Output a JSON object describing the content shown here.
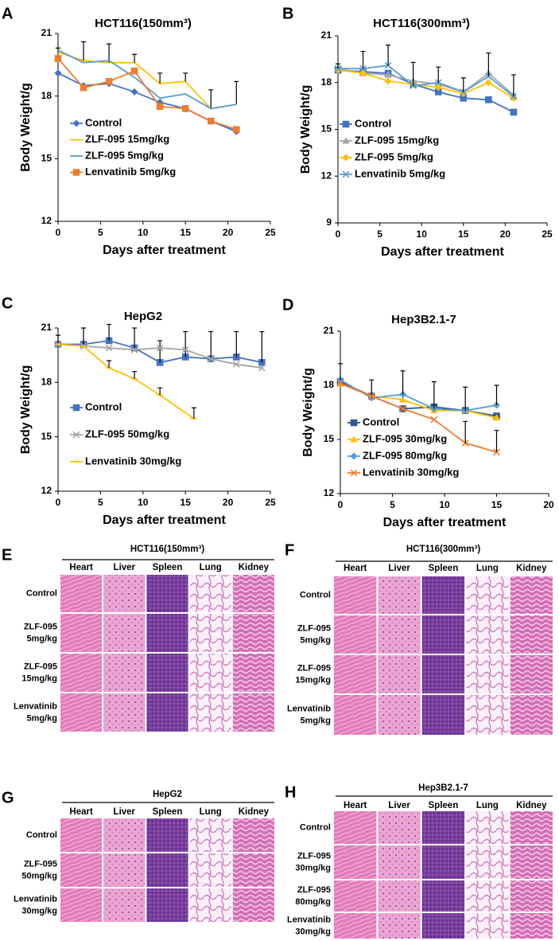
{
  "chart_data": [
    {
      "panel": "A",
      "type": "line",
      "title": "HCT116(150mm³)",
      "x_label": "Days after treatment",
      "y_label": "Body Weight/g",
      "x": [
        0,
        3,
        6,
        9,
        12,
        15,
        18,
        21
      ],
      "xlim": [
        0,
        25
      ],
      "xticks": [
        0,
        5,
        10,
        15,
        20,
        25
      ],
      "ylim": [
        12,
        21
      ],
      "yticks": [
        12,
        15,
        18,
        21
      ],
      "legend": "lower left",
      "series": [
        {
          "name": "Control",
          "color": "#4472c4",
          "marker": "diamond",
          "values": [
            19.1,
            18.5,
            18.6,
            18.2,
            17.7,
            17.4,
            16.8,
            16.3
          ]
        },
        {
          "name": "ZLF-095 15mg/kg",
          "color": "#ffc000",
          "marker": "none",
          "values": [
            20.1,
            19.7,
            19.6,
            19.6,
            18.6,
            18.7,
            17.4,
            17.6
          ],
          "errors": [
            0.2,
            0.9,
            0.9,
            0.4,
            0.5,
            0.4,
            0.9,
            1.1
          ]
        },
        {
          "name": "ZLF-095 5mg/kg",
          "color": "#5b9bd5",
          "marker": "none",
          "values": [
            20.2,
            19.6,
            19.7,
            18.9,
            17.9,
            18.1,
            17.4,
            17.6
          ]
        },
        {
          "name": "Lenvatinib  5mg/kg",
          "color": "#ed7d31",
          "marker": "square",
          "values": [
            19.8,
            18.4,
            18.7,
            19.2,
            17.5,
            17.4,
            16.8,
            16.4
          ]
        }
      ]
    },
    {
      "panel": "B",
      "type": "line",
      "title": "HCT116(300mm³)",
      "x_label": "Days after treatment",
      "y_label": "Body Weight/g",
      "x": [
        0,
        3,
        6,
        9,
        12,
        15,
        18,
        21
      ],
      "xlim": [
        0,
        25
      ],
      "xticks": [
        0,
        5,
        10,
        15,
        20,
        25
      ],
      "ylim": [
        9,
        21
      ],
      "yticks": [
        9,
        12,
        15,
        18,
        21
      ],
      "legend": "lower left",
      "series": [
        {
          "name": "Control",
          "color": "#4472c4",
          "marker": "square",
          "values": [
            18.8,
            18.7,
            18.6,
            17.9,
            17.4,
            17.0,
            16.9,
            16.1
          ]
        },
        {
          "name": "ZLF-095 15mg/kg",
          "color": "#a5a5a5",
          "marker": "triangle",
          "values": [
            18.9,
            18.6,
            18.5,
            18.1,
            17.9,
            17.4,
            18.6,
            17.2
          ]
        },
        {
          "name": "ZLF-095 5mg/kg",
          "color": "#ffc000",
          "marker": "diamond",
          "values": [
            18.8,
            18.6,
            18.1,
            17.9,
            17.7,
            17.3,
            18.0,
            17.0
          ]
        },
        {
          "name": "Lenvatinib 5mg/kg",
          "color": "#5b9bd5",
          "marker": "cross",
          "values": [
            18.9,
            18.9,
            19.1,
            17.8,
            18.0,
            17.4,
            18.4,
            17.1
          ],
          "errors": [
            0.3,
            1.1,
            1.3,
            1.5,
            1.0,
            0.9,
            1.5,
            1.4
          ]
        }
      ]
    },
    {
      "panel": "C",
      "type": "line",
      "title": "HepG2",
      "x_label": "Days after treatment",
      "y_label": "Body Weight/g",
      "xlim": [
        0,
        25
      ],
      "xticks": [
        0,
        5,
        10,
        15,
        20,
        25
      ],
      "ylim": [
        12,
        21
      ],
      "yticks": [
        12,
        15,
        18,
        21
      ],
      "legend": "lower left",
      "series": [
        {
          "name": "Control",
          "color": "#4472c4",
          "marker": "square",
          "x": [
            0,
            3,
            6,
            9,
            12,
            15,
            18,
            21,
            24
          ],
          "values": [
            20.1,
            20.1,
            20.3,
            19.9,
            19.1,
            19.4,
            19.3,
            19.4,
            19.1
          ],
          "errors": [
            0.5,
            0.9,
            0.9,
            1.1,
            1.2,
            1.4,
            1.5,
            1.4,
            1.7
          ]
        },
        {
          "name": "ZLF-095 50mg/kg",
          "color": "#a5a5a5",
          "marker": "cross",
          "x": [
            0,
            3,
            6,
            9,
            12,
            15,
            18,
            21,
            24
          ],
          "values": [
            20.1,
            20.0,
            19.9,
            19.8,
            19.9,
            19.8,
            19.3,
            19.0,
            18.8
          ]
        },
        {
          "name": "Lenvatinib 30mg/kg",
          "color": "#ffc000",
          "marker": "dash",
          "x": [
            0,
            3,
            6,
            9,
            12,
            16
          ],
          "values": [
            20.1,
            20.0,
            18.8,
            18.2,
            17.3,
            16.0
          ],
          "errors": [
            null,
            null,
            0.4,
            0.4,
            0.4,
            0.6
          ]
        }
      ]
    },
    {
      "panel": "D",
      "type": "line",
      "title": "Hep3B2.1-7",
      "x_label": "Days after treatment",
      "y_label": "Body Weight/g",
      "x": [
        0,
        3,
        6,
        9,
        12,
        15
      ],
      "xlim": [
        0,
        20
      ],
      "xticks": [
        0,
        5,
        10,
        15,
        20
      ],
      "ylim": [
        12,
        21
      ],
      "yticks": [
        12,
        15,
        18,
        21
      ],
      "legend": "lower left",
      "series": [
        {
          "name": "Control",
          "color": "#2f5597",
          "marker": "square",
          "values": [
            18.2,
            17.4,
            16.7,
            16.8,
            16.6,
            16.3
          ]
        },
        {
          "name": "ZLF-095 30mg/kg",
          "color": "#ffc000",
          "marker": "triangle",
          "values": [
            18.1,
            17.4,
            17.2,
            16.6,
            16.6,
            16.2
          ]
        },
        {
          "name": "ZLF-095 80mg/kg",
          "color": "#5b9bd5",
          "marker": "diamond",
          "values": [
            18.3,
            17.3,
            17.5,
            16.7,
            16.6,
            16.9
          ],
          "errors": [
            0.9,
            1.0,
            1.3,
            1.5,
            1.3,
            1.1
          ]
        },
        {
          "name": "Lenvatinib 30mg/kg",
          "color": "#ed7d31",
          "marker": "cross",
          "values": [
            18.1,
            17.4,
            16.7,
            16.1,
            14.8,
            14.3
          ],
          "errors": [
            null,
            null,
            null,
            null,
            1.2,
            1.2
          ]
        }
      ]
    }
  ],
  "histology": [
    {
      "panel": "E",
      "title": "HCT116(150mm³)",
      "columns": [
        "Heart",
        "Liver",
        "Spleen",
        "Lung",
        "Kidney"
      ],
      "rows": [
        [
          "Control"
        ],
        [
          "ZLF-095",
          "5mg/kg"
        ],
        [
          "ZLF-095",
          "15mg/kg"
        ],
        [
          "Lenvatinib",
          "5mg/kg"
        ]
      ]
    },
    {
      "panel": "F",
      "title": "HCT116(300mm³)",
      "columns": [
        "Heart",
        "Liver",
        "Spleen",
        "Lung",
        "Kidney"
      ],
      "rows": [
        [
          "Control"
        ],
        [
          "ZLF-095",
          "5mg/kg"
        ],
        [
          "ZLF-095",
          "15mg/kg"
        ],
        [
          "Lenvatinib",
          "5mg/kg"
        ]
      ]
    },
    {
      "panel": "G",
      "title": "HepG2",
      "columns": [
        "Heart",
        "Liver",
        "Spleen",
        "Lung",
        "Kidney"
      ],
      "rows": [
        [
          "Control"
        ],
        [
          "ZLF-095",
          "50mg/kg"
        ],
        [
          "Lenvatinib",
          "30mg/kg"
        ]
      ]
    },
    {
      "panel": "H",
      "title": "Hep3B2.1-7",
      "columns": [
        "Heart",
        "Liver",
        "Spleen",
        "Lung",
        "Kidney"
      ],
      "rows": [
        [
          "Control"
        ],
        [
          "ZLF-095",
          "30mg/kg"
        ],
        [
          "ZLF-095",
          "80mg/kg"
        ],
        [
          "Lenvatinib",
          "30mg/kg"
        ]
      ]
    }
  ]
}
